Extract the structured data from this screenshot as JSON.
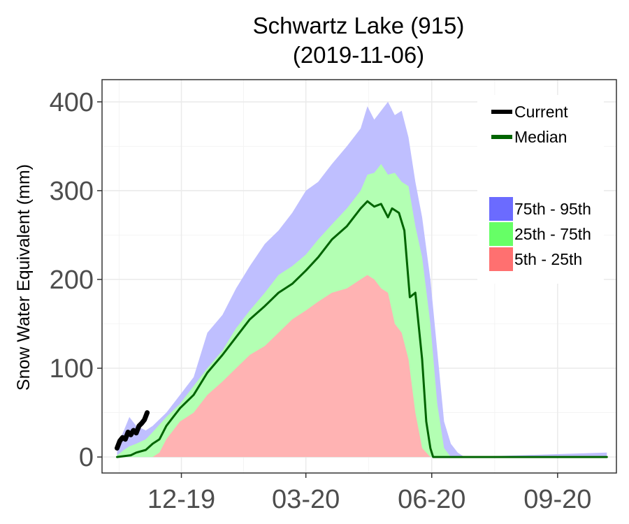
{
  "chart_data": {
    "type": "area",
    "title": "Schwartz Lake (915)",
    "subtitle": "(2019-11-06)",
    "ylabel": "Snow Water Equivalent (mm)",
    "xlabel": "",
    "ylim": [
      -18,
      425
    ],
    "xlim": [
      "2019-10-04",
      "2020-10-14"
    ],
    "grid": true,
    "y_ticks": [
      0,
      100,
      200,
      300,
      400
    ],
    "x_ticks": [
      {
        "date": "2019-12-01",
        "label": "12-19"
      },
      {
        "date": "2020-03-01",
        "label": "03-20"
      },
      {
        "date": "2020-06-01",
        "label": "06-20"
      },
      {
        "date": "2020-09-01",
        "label": "09-20"
      }
    ],
    "legend": {
      "placement": "top-right",
      "lines": [
        {
          "name": "Current",
          "color": "#000000"
        },
        {
          "name": "Median",
          "color": "#006400"
        }
      ],
      "bands": [
        {
          "name": "75th - 95th",
          "color": "#6b6bff"
        },
        {
          "name": "25th - 75th",
          "color": "#66ff66"
        },
        {
          "name": "5th - 25th",
          "color": "#ff7070"
        }
      ]
    },
    "bands": [
      {
        "name": "75th - 95th",
        "fill": "#bfbfff",
        "x": [
          "2019-10-15",
          "2019-10-20",
          "2019-10-24",
          "2019-10-29",
          "2019-11-05",
          "2019-11-10",
          "2019-11-20",
          "2019-11-30",
          "2019-12-10",
          "2019-12-20",
          "2019-12-31",
          "2020-01-10",
          "2020-01-20",
          "2020-01-31",
          "2020-02-10",
          "2020-02-20",
          "2020-03-01",
          "2020-03-10",
          "2020-03-20",
          "2020-03-31",
          "2020-04-10",
          "2020-04-15",
          "2020-04-20",
          "2020-04-25",
          "2020-04-30",
          "2020-05-05",
          "2020-05-10",
          "2020-05-15",
          "2020-05-20",
          "2020-05-25",
          "2020-05-31",
          "2020-06-05",
          "2020-06-10",
          "2020-06-15",
          "2020-06-20",
          "2020-06-25",
          "2020-10-07"
        ],
        "upper": [
          12,
          30,
          45,
          35,
          30,
          35,
          50,
          70,
          90,
          140,
          160,
          190,
          215,
          240,
          255,
          275,
          300,
          310,
          330,
          350,
          370,
          395,
          380,
          390,
          400,
          385,
          390,
          360,
          310,
          270,
          200,
          120,
          40,
          15,
          5,
          0,
          5
        ],
        "lower": [
          0,
          0,
          0,
          0,
          0,
          0,
          0,
          0,
          0,
          0,
          0,
          0,
          0,
          0,
          0,
          0,
          0,
          0,
          0,
          0,
          0,
          0,
          0,
          0,
          0,
          0,
          0,
          0,
          0,
          0,
          0,
          0,
          0,
          0,
          0,
          0,
          0
        ]
      },
      {
        "name": "25th - 75th",
        "fill": "#b3ffb3",
        "x": [
          "2019-10-15",
          "2019-10-20",
          "2019-10-24",
          "2019-10-29",
          "2019-11-05",
          "2019-11-10",
          "2019-11-20",
          "2019-11-30",
          "2019-12-10",
          "2019-12-20",
          "2019-12-31",
          "2020-01-10",
          "2020-01-20",
          "2020-01-31",
          "2020-02-10",
          "2020-02-20",
          "2020-03-01",
          "2020-03-10",
          "2020-03-20",
          "2020-03-31",
          "2020-04-10",
          "2020-04-15",
          "2020-04-20",
          "2020-04-25",
          "2020-04-30",
          "2020-05-05",
          "2020-05-10",
          "2020-05-15",
          "2020-05-20",
          "2020-05-25",
          "2020-05-31",
          "2020-06-05",
          "2020-06-10",
          "2020-06-15",
          "2020-10-07"
        ],
        "upper": [
          2,
          8,
          12,
          15,
          20,
          28,
          45,
          60,
          80,
          100,
          120,
          145,
          165,
          185,
          205,
          215,
          228,
          245,
          262,
          280,
          300,
          318,
          320,
          330,
          318,
          320,
          310,
          305,
          260,
          225,
          150,
          60,
          10,
          0,
          0
        ],
        "lower": [
          0,
          0,
          0,
          0,
          0,
          0,
          0,
          0,
          0,
          0,
          0,
          0,
          0,
          0,
          0,
          0,
          0,
          0,
          0,
          0,
          0,
          0,
          0,
          0,
          0,
          0,
          0,
          0,
          0,
          0,
          0,
          0,
          0,
          0,
          0
        ]
      },
      {
        "name": "5th - 25th",
        "fill": "#ffb3b3",
        "x": [
          "2019-10-15",
          "2019-10-25",
          "2019-11-05",
          "2019-11-10",
          "2019-11-15",
          "2019-11-20",
          "2019-11-30",
          "2019-12-10",
          "2019-12-20",
          "2019-12-31",
          "2020-01-10",
          "2020-01-20",
          "2020-01-31",
          "2020-02-10",
          "2020-02-20",
          "2020-03-01",
          "2020-03-10",
          "2020-03-20",
          "2020-03-31",
          "2020-04-10",
          "2020-04-15",
          "2020-04-20",
          "2020-04-25",
          "2020-04-30",
          "2020-05-05",
          "2020-05-10",
          "2020-05-15",
          "2020-05-20",
          "2020-05-25",
          "2020-05-31",
          "2020-10-07"
        ],
        "upper": [
          0,
          0,
          0,
          0,
          5,
          20,
          40,
          50,
          70,
          85,
          100,
          115,
          125,
          140,
          155,
          165,
          175,
          185,
          190,
          200,
          205,
          200,
          190,
          185,
          150,
          140,
          110,
          50,
          10,
          0,
          0
        ],
        "lower": [
          0,
          0,
          0,
          0,
          0,
          0,
          0,
          0,
          0,
          0,
          0,
          0,
          0,
          0,
          0,
          0,
          0,
          0,
          0,
          0,
          0,
          0,
          0,
          0,
          0,
          0,
          0,
          0,
          0,
          0,
          0
        ]
      }
    ],
    "series": [
      {
        "name": "Median",
        "color": "#006400",
        "x": [
          "2019-10-15",
          "2019-10-25",
          "2019-10-29",
          "2019-11-05",
          "2019-11-10",
          "2019-11-15",
          "2019-11-20",
          "2019-11-30",
          "2019-12-10",
          "2019-12-20",
          "2019-12-31",
          "2020-01-10",
          "2020-01-20",
          "2020-01-31",
          "2020-02-10",
          "2020-02-20",
          "2020-03-01",
          "2020-03-10",
          "2020-03-20",
          "2020-03-31",
          "2020-04-10",
          "2020-04-15",
          "2020-04-20",
          "2020-04-25",
          "2020-04-30",
          "2020-05-03",
          "2020-05-08",
          "2020-05-12",
          "2020-05-16",
          "2020-05-20",
          "2020-05-25",
          "2020-05-28",
          "2020-05-31",
          "2020-06-02",
          "2020-10-07"
        ],
        "y": [
          0,
          2,
          5,
          8,
          15,
          20,
          35,
          55,
          70,
          95,
          115,
          135,
          155,
          170,
          185,
          195,
          210,
          225,
          245,
          260,
          280,
          288,
          282,
          285,
          270,
          280,
          275,
          255,
          180,
          185,
          110,
          40,
          10,
          0,
          0
        ]
      },
      {
        "name": "Current",
        "color": "#000000",
        "x": [
          "2019-10-15",
          "2019-10-17",
          "2019-10-19",
          "2019-10-21",
          "2019-10-23",
          "2019-10-25",
          "2019-10-27",
          "2019-10-29",
          "2019-10-31",
          "2019-11-02",
          "2019-11-04",
          "2019-11-06"
        ],
        "y": [
          10,
          18,
          22,
          20,
          28,
          25,
          30,
          27,
          35,
          38,
          42,
          50
        ]
      }
    ]
  }
}
